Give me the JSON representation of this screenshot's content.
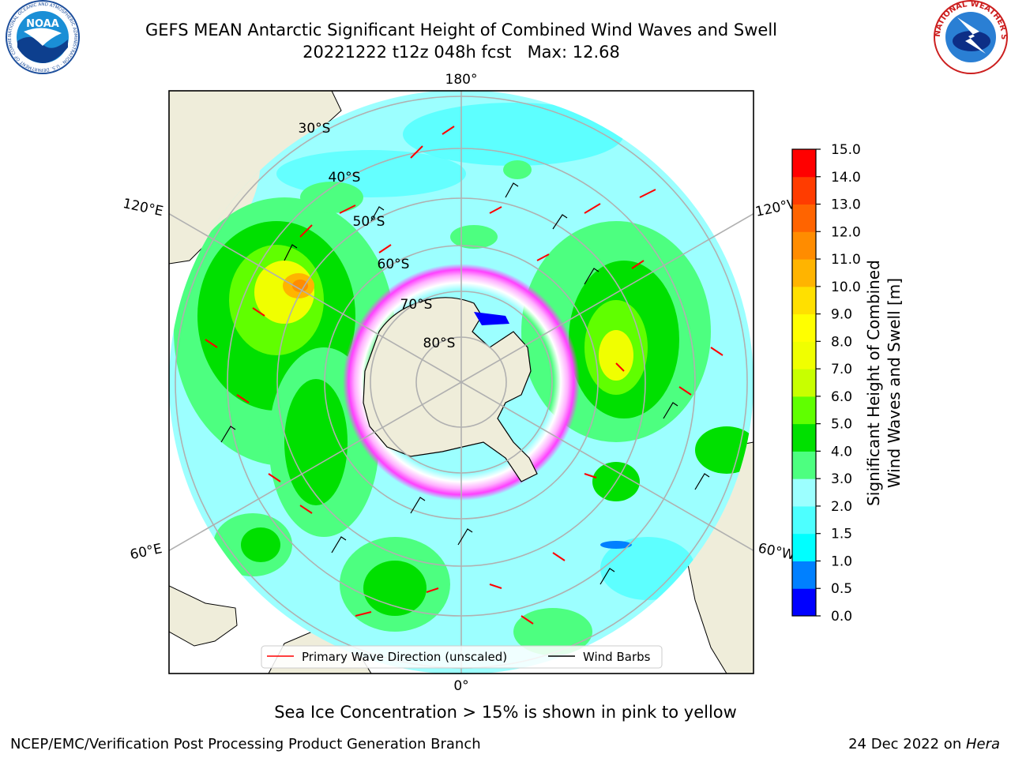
{
  "header": {
    "title": "GEFS MEAN Antarctic Significant Height of Combined Wind Waves and Swell",
    "subtitle": "20221222 t12z 048h fcst   Max: 12.68"
  },
  "logos": {
    "left": {
      "text": "NOAA",
      "ring_text": "NATIONAL OCEANIC AND ATMOSPHERIC ADMINISTRATION · U.S. DEPARTMENT OF COMMERCE ·",
      "icon": "noaa-logo"
    },
    "right": {
      "ring_text": "NATIONAL WEATHER SERVICE",
      "icon": "nws-logo"
    }
  },
  "map": {
    "longitude_labels": {
      "top": "180°",
      "bottom": "0°",
      "upper_left": "120°E",
      "upper_right": "120°W",
      "lower_left": "60°E",
      "lower_right": "60°W"
    },
    "latitude_labels": [
      "30°S",
      "40°S",
      "50°S",
      "60°S",
      "70°S",
      "80°S"
    ],
    "colors": {
      "land": "#efedda",
      "ocean_low": "#9effff",
      "mid": "#3ff07a",
      "high": "#ffff00",
      "peak": "#ff8c00",
      "arrow": "#ff0000"
    }
  },
  "legend": {
    "primary_wave": "Primary Wave Direction (unscaled)",
    "wind_barbs": "Wind Barbs"
  },
  "colorbar": {
    "label_line1": "Significant Height of Combined",
    "label_line2": "Wind Waves and Swell [m]",
    "ticks": [
      "0.0",
      "0.5",
      "1.0",
      "1.5",
      "2.0",
      "3.0",
      "4.0",
      "5.0",
      "6.0",
      "7.0",
      "8.0",
      "9.0",
      "10.0",
      "11.0",
      "12.0",
      "13.0",
      "14.0",
      "15.0"
    ],
    "colors": [
      "#0000ff",
      "#0080ff",
      "#00ffff",
      "#4dffff",
      "#9cffff",
      "#4dff80",
      "#00e000",
      "#60ff00",
      "#c8ff00",
      "#f0ff00",
      "#ffff00",
      "#ffe000",
      "#ffb400",
      "#ff8c00",
      "#ff6400",
      "#ff3c00",
      "#ff0000"
    ]
  },
  "caption": "Sea Ice Concentration > 15% is shown in pink to yellow",
  "footer": {
    "left": "NCEP/EMC/Verification Post Processing Product Generation Branch",
    "right_date": "24 Dec 2022 on ",
    "right_host": "Hera"
  }
}
